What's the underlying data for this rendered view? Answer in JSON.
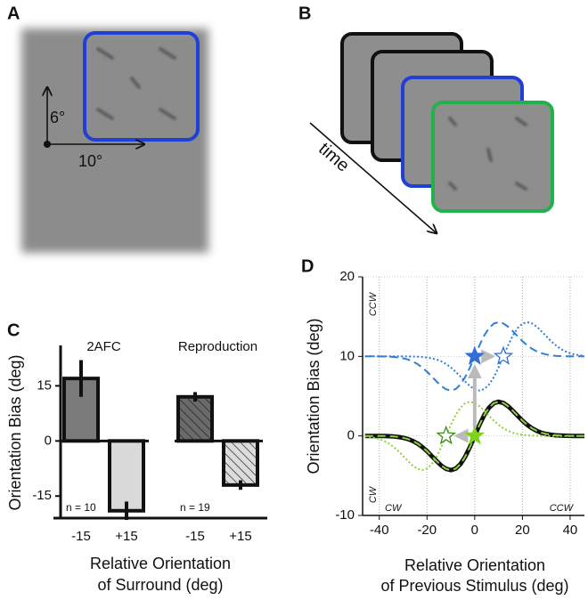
{
  "panels": {
    "A": {
      "label": "A",
      "vertical": "6°",
      "horizontal": "10°"
    },
    "B": {
      "label": "B",
      "axis": "time"
    }
  },
  "chart_data": [
    {
      "type": "bar",
      "panel": "C",
      "ylabel": "Orientation Bias (deg)",
      "xlabel": [
        "Relative Orientation",
        "of Surround (deg)"
      ],
      "ylim": [
        -21,
        26
      ],
      "yticks": [
        15,
        0,
        -15
      ],
      "groups": [
        {
          "name": "2AFC",
          "categories": [
            "-15",
            "+15"
          ],
          "values": [
            17,
            -19
          ],
          "errors": [
            5,
            2.5
          ],
          "colors": [
            "#7a7a7a",
            "#d9d9d9"
          ],
          "hatch": false,
          "annotation": "n = 10"
        },
        {
          "name": "Reproduction",
          "categories": [
            "-15",
            "+15"
          ],
          "values": [
            12,
            -12
          ],
          "errors": [
            1.3,
            1.3
          ],
          "colors": [
            "#6a6a6a",
            "#dcdcdc"
          ],
          "hatch": true,
          "annotation": "n = 19"
        }
      ]
    },
    {
      "type": "line",
      "panel": "D",
      "ylabel": "Orientation Bias (deg)",
      "xlabel": [
        "Relative Orientation",
        "of Previous Stimulus (deg)"
      ],
      "xlim": [
        -47,
        46
      ],
      "ylim": [
        -10,
        20
      ],
      "xticks": [
        -40,
        -20,
        0,
        20,
        40
      ],
      "yticks": [
        -10,
        0,
        10,
        20
      ],
      "grid": true,
      "annotations": [
        "CCW",
        "CW",
        "CW",
        "CCW"
      ],
      "x": [
        -46,
        -44,
        -42,
        -40,
        -38,
        -36,
        -34,
        -32,
        -30,
        -28,
        -26,
        -24,
        -22,
        -20,
        -18,
        -16,
        -14,
        -12,
        -10,
        -8,
        -6,
        -4,
        -2,
        0,
        2,
        4,
        6,
        8,
        10,
        12,
        14,
        16,
        18,
        20,
        22,
        24,
        26,
        28,
        30,
        32,
        34,
        36,
        38,
        40,
        42,
        44,
        46
      ],
      "series": [
        {
          "color": "#111111",
          "style": "solid",
          "width": 5,
          "values": [
            0,
            0,
            0,
            -0.01,
            -0.02,
            -0.04,
            -0.07,
            -0.14,
            -0.24,
            -0.39,
            -0.63,
            -0.96,
            -1.39,
            -1.92,
            -2.53,
            -3.15,
            -3.73,
            -4.14,
            -4.3,
            -4.12,
            -3.55,
            -2.62,
            -1.39,
            0,
            1.39,
            2.62,
            3.55,
            4.12,
            4.3,
            4.14,
            3.73,
            3.15,
            2.53,
            1.92,
            1.39,
            0.96,
            0.63,
            0.39,
            0.24,
            0.14,
            0.07,
            0.04,
            0.02,
            0.01,
            0,
            0,
            0
          ]
        },
        {
          "color": "#8ed13a",
          "style": "dashed",
          "width": 2,
          "values": [
            0,
            0,
            0,
            -0.01,
            -0.02,
            -0.04,
            -0.07,
            -0.14,
            -0.24,
            -0.39,
            -0.63,
            -0.96,
            -1.39,
            -1.92,
            -2.53,
            -3.15,
            -3.73,
            -4.14,
            -4.3,
            -4.12,
            -3.55,
            -2.62,
            -1.39,
            0,
            1.39,
            2.62,
            3.55,
            4.12,
            4.3,
            4.14,
            3.73,
            3.15,
            2.53,
            1.92,
            1.39,
            0.96,
            0.63,
            0.39,
            0.24,
            0.14,
            0.07,
            0.04,
            0.02,
            0.01,
            0,
            0,
            0
          ]
        },
        {
          "color": "#8ed13a",
          "style": "dotted",
          "width": 2,
          "values": [
            -0.07,
            -0.14,
            -0.24,
            -0.39,
            -0.63,
            -0.96,
            -1.39,
            -1.92,
            -2.53,
            -3.15,
            -3.73,
            -4.14,
            -4.3,
            -4.12,
            -3.55,
            -2.62,
            -1.39,
            0,
            1.39,
            2.62,
            3.55,
            4.12,
            4.3,
            4.14,
            3.73,
            3.15,
            2.53,
            1.92,
            1.39,
            0.96,
            0.63,
            0.39,
            0.24,
            0.14,
            0.07,
            0.04,
            0.02,
            0.01,
            0,
            0,
            0,
            0,
            0,
            0,
            0,
            0,
            0
          ]
        },
        {
          "color": "#2f7fd8",
          "style": "dashed",
          "width": 2,
          "values": [
            10,
            10,
            10,
            9.99,
            9.98,
            9.96,
            9.93,
            9.86,
            9.76,
            9.61,
            9.37,
            9.04,
            8.61,
            8.08,
            7.47,
            6.85,
            6.27,
            5.86,
            5.7,
            5.88,
            6.45,
            7.38,
            8.61,
            10,
            11.39,
            12.62,
            13.55,
            14.12,
            14.3,
            14.14,
            13.73,
            13.15,
            12.53,
            11.92,
            11.39,
            10.96,
            10.63,
            10.39,
            10.24,
            10.14,
            10.07,
            10.04,
            10.02,
            10.01,
            10,
            10,
            10
          ]
        },
        {
          "color": "#2f7fd8",
          "style": "dotted",
          "width": 2,
          "values": [
            10,
            10,
            10,
            10,
            10,
            10,
            10,
            10,
            10,
            9.99,
            9.98,
            9.96,
            9.93,
            9.86,
            9.76,
            9.61,
            9.37,
            9.04,
            8.61,
            8.08,
            7.47,
            6.85,
            6.27,
            5.86,
            5.7,
            5.88,
            6.45,
            7.38,
            8.61,
            10,
            11.39,
            12.62,
            13.55,
            14.12,
            14.3,
            14.14,
            13.73,
            13.15,
            12.53,
            11.92,
            11.39,
            10.96,
            10.63,
            10.39,
            10.24,
            10.14,
            10.07
          ]
        }
      ],
      "markers": [
        {
          "x": 0,
          "y": 10,
          "color": "#2f6fd6",
          "filled": true
        },
        {
          "x": 12,
          "y": 10,
          "color": "#2f6fd6",
          "filled": false
        },
        {
          "x": 0,
          "y": 0,
          "color": "#7ed321",
          "filled": true
        },
        {
          "x": -12,
          "y": 0,
          "color": "#3a8a1a",
          "filled": false
        }
      ]
    }
  ]
}
